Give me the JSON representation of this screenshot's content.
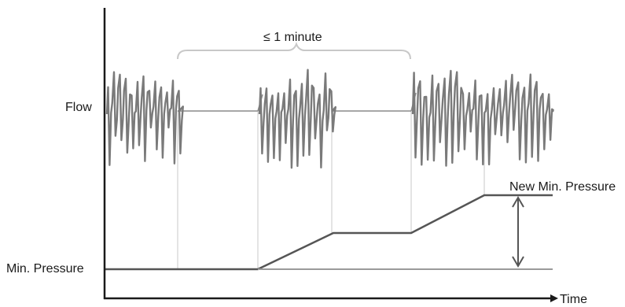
{
  "labels": {
    "flow": "Flow",
    "min_pressure": "Min. Pressure",
    "new_min_pressure": "New Min. Pressure",
    "time": "Time",
    "interval": "≤ 1 minute"
  },
  "colors": {
    "axis": "#1a1a1a",
    "flow_trace": "#7a7a7a",
    "pressure_line": "#555555",
    "guide": "#c8c8c8",
    "brace": "#c8c8c8"
  }
}
